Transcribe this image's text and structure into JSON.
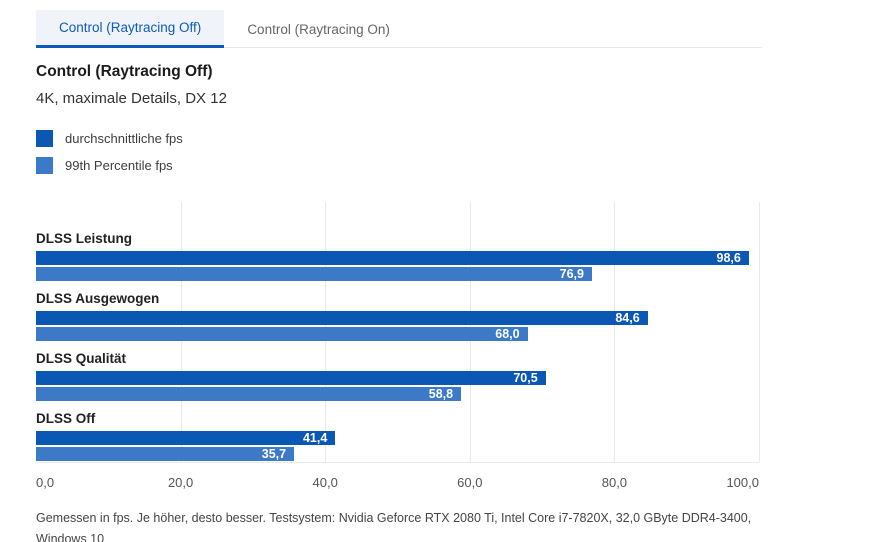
{
  "tabs": [
    {
      "label": "Control (Raytracing Off)",
      "active": true
    },
    {
      "label": "Control (Raytracing On)",
      "active": false
    }
  ],
  "header": {
    "title": "Control (Raytracing Off)",
    "subtitle": "4K, maximale Details, DX 12"
  },
  "legend": [
    {
      "label": "durchschnittliche fps",
      "color": "#0b57b4"
    },
    {
      "label": "99th Percentile fps",
      "color": "#3c79c7"
    }
  ],
  "chart_data": {
    "type": "bar",
    "orientation": "horizontal",
    "title": "Control (Raytracing Off)",
    "subtitle": "4K, maximale Details, DX 12",
    "categories": [
      "DLSS Leistung",
      "DLSS Ausgewogen",
      "DLSS Qualität",
      "DLSS Off"
    ],
    "series": [
      {
        "name": "durchschnittliche fps",
        "color": "#0b57b4",
        "values": [
          98.6,
          84.6,
          70.5,
          41.4
        ]
      },
      {
        "name": "99th Percentile fps",
        "color": "#3c79c7",
        "values": [
          76.9,
          68.0,
          58.8,
          35.7
        ]
      }
    ],
    "value_labels": [
      [
        "98,6",
        "84,6",
        "70,5",
        "41,4"
      ],
      [
        "76,9",
        "68,0",
        "58,8",
        "35,7"
      ]
    ],
    "xlim": [
      0,
      100
    ],
    "x_ticks": [
      "0,0",
      "20,0",
      "40,0",
      "60,0",
      "80,0",
      "100,0"
    ],
    "grid": true,
    "legend_position": "top-left"
  },
  "footer": {
    "note": "Gemessen in fps. Je höher, desto besser. Testsystem: Nvidia Geforce RTX 2080 Ti, Intel Core i7-7820X, 32,0 GByte DDR4-3400, Windows 10"
  },
  "colors": {
    "bar_primary": "#0b57b4",
    "bar_secondary": "#3c79c7",
    "tab_active_text": "#0b5cba",
    "tab_active_bg": "#f0f4fa",
    "gridline": "#eaeaea"
  }
}
